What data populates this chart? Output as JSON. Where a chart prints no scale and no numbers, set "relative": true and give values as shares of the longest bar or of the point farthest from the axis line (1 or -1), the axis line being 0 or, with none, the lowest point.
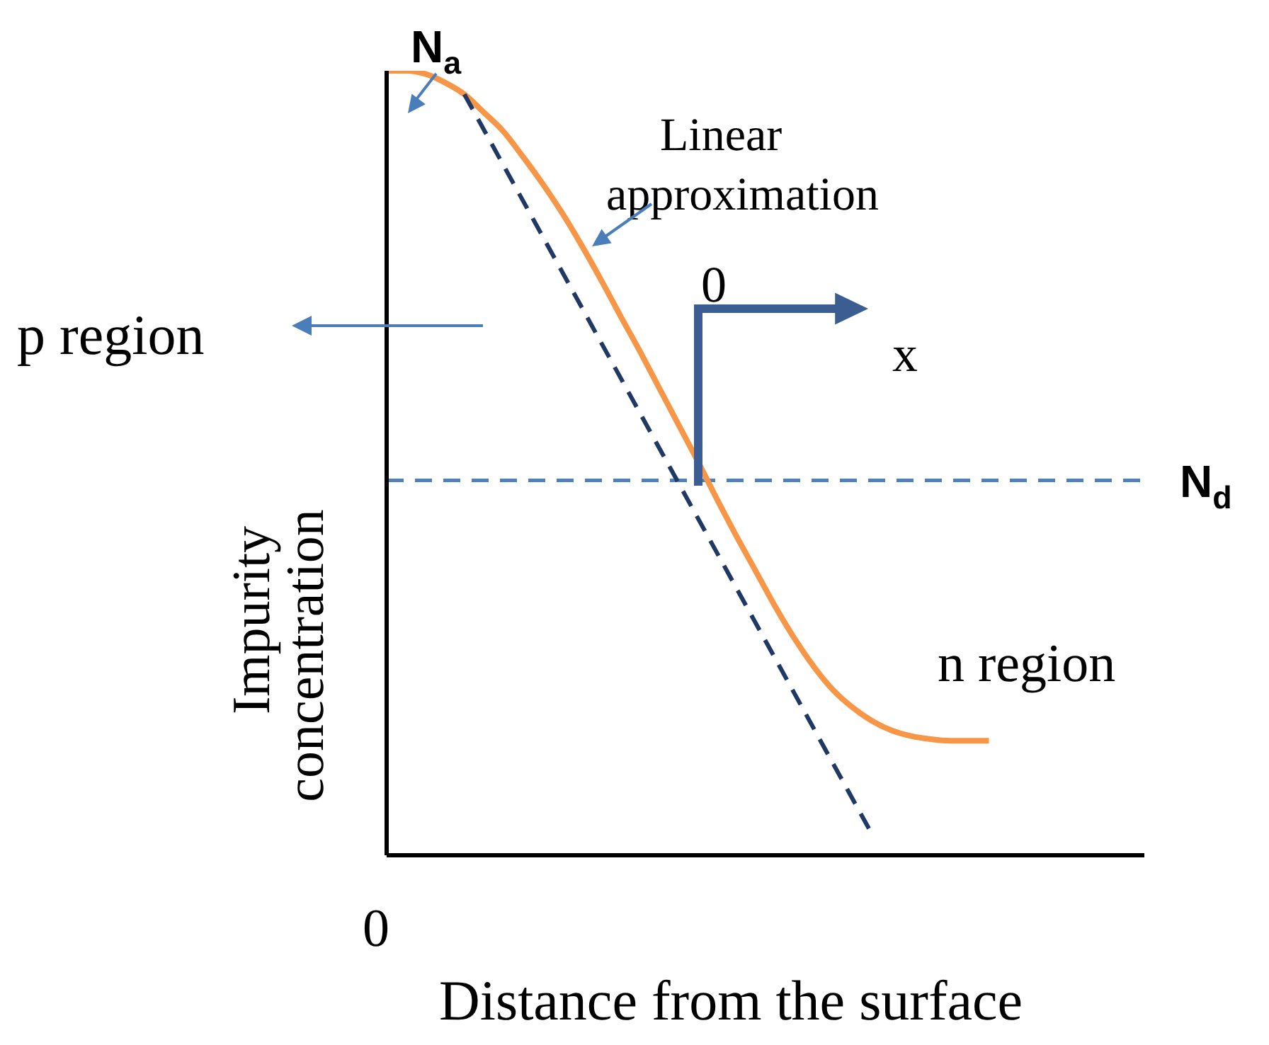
{
  "chart_data": {
    "type": "line",
    "relative": true,
    "xlabel": "Distance from the surface",
    "ylabel": "Impurity concentration",
    "categories": [
      null,
      null,
      null,
      null,
      null,
      null,
      null,
      null,
      null,
      null,
      null,
      null,
      null,
      null,
      null,
      null,
      null,
      null,
      null,
      null,
      null,
      null,
      null,
      null,
      null,
      null,
      null,
      null,
      null,
      null,
      null,
      null,
      null,
      null,
      null,
      null,
      null,
      null,
      null,
      null
    ],
    "series": [
      {
        "color": "#f79646",
        "line_style": "solid",
        "values": [
          1.0,
          1.0,
          0.996,
          0.985,
          0.97,
          0.947,
          0.923,
          0.891,
          0.857,
          0.82,
          0.779,
          0.735,
          0.689,
          0.644,
          0.597,
          0.55,
          0.503,
          0.454,
          0.407,
          0.362,
          0.317,
          0.276,
          0.24,
          0.21,
          0.188,
          0.171,
          0.159,
          0.152,
          0.148,
          0.146,
          0.146,
          0.146,
          null,
          null,
          null,
          null,
          null,
          null,
          null,
          null
        ]
      },
      {
        "color": "#1f3864",
        "line_style": "dashed",
        "values": [
          null,
          null,
          null,
          null,
          0.97,
          null,
          null,
          null,
          null,
          null,
          null,
          null,
          null,
          null,
          null,
          null,
          null,
          null,
          null,
          null,
          null,
          null,
          null,
          null,
          null,
          0.026,
          null,
          null,
          null,
          null,
          null,
          null,
          null,
          null,
          null,
          null,
          null,
          null,
          null,
          null
        ]
      }
    ],
    "ref_lines": [
      {
        "axis": "y",
        "value": 0.478,
        "label": "N$_{d}$",
        "color": "#4f81bd",
        "line_style": "dashed"
      }
    ],
    "annotations": [
      "N$_{a}$",
      "Linear approximation",
      "0",
      "x",
      "p region",
      "n region",
      "0"
    ],
    "marker": "none"
  }
}
